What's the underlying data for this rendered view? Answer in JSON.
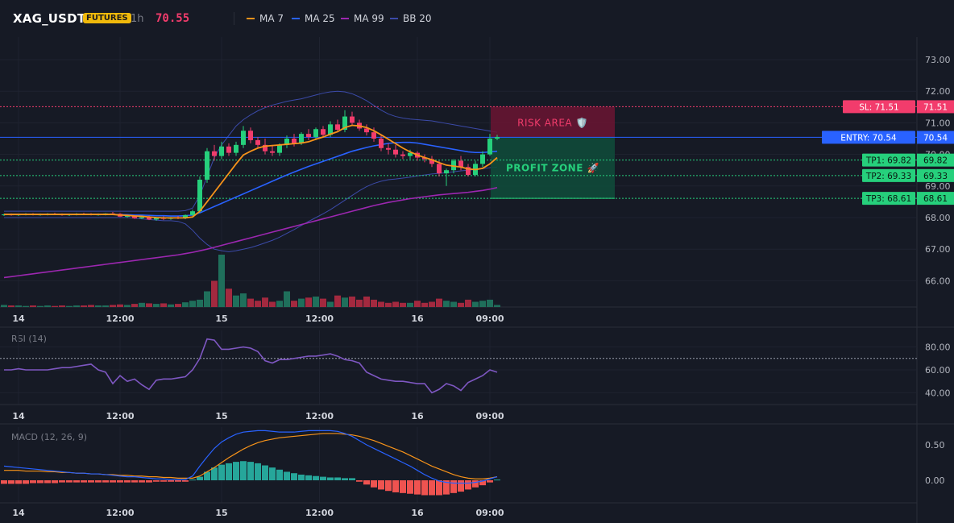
{
  "header": {
    "symbol": "XAG_USDT",
    "badge": "FUTURES",
    "timeframe": "1h",
    "price": "70.55"
  },
  "legend": [
    {
      "label": "MA 7",
      "color": "#f7931a"
    },
    {
      "label": "MA 25",
      "color": "#2962ff"
    },
    {
      "label": "MA 99",
      "color": "#9c27b0"
    },
    {
      "label": "BB 20",
      "color": "#3b4aa8"
    }
  ],
  "colors": {
    "up": "#26d07c",
    "down": "#f23c6c",
    "vol_up": "#1f6f5b",
    "vol_down": "#a3293f"
  },
  "chart_data": [
    {
      "type": "candlestick",
      "title": "XAG_USDT 1h",
      "x_ticks": [
        "14",
        "12:00",
        "15",
        "12:00",
        "16",
        "09:00"
      ],
      "y_ticks": [
        "73.00",
        "72.00",
        "71.00",
        "70.00",
        "69.00",
        "68.00",
        "67.00",
        "66.00"
      ],
      "ylim": [
        65.2,
        73.6
      ],
      "candles": [
        [
          68.08,
          68.12,
          68.05,
          68.1
        ],
        [
          68.1,
          68.13,
          68.06,
          68.08
        ],
        [
          68.08,
          68.12,
          68.05,
          68.1
        ],
        [
          68.1,
          68.14,
          68.07,
          68.11
        ],
        [
          68.11,
          68.14,
          68.07,
          68.09
        ],
        [
          68.09,
          68.13,
          68.06,
          68.1
        ],
        [
          68.1,
          68.14,
          68.07,
          68.12
        ],
        [
          68.12,
          68.15,
          68.08,
          68.1
        ],
        [
          68.1,
          68.13,
          68.06,
          68.08
        ],
        [
          68.08,
          68.12,
          68.05,
          68.1
        ],
        [
          68.1,
          68.14,
          68.07,
          68.12
        ],
        [
          68.12,
          68.15,
          68.08,
          68.11
        ],
        [
          68.11,
          68.14,
          68.07,
          68.09
        ],
        [
          68.09,
          68.13,
          68.06,
          68.1
        ],
        [
          68.1,
          68.14,
          68.07,
          68.13
        ],
        [
          68.13,
          68.18,
          68.1,
          68.12
        ],
        [
          68.12,
          68.14,
          68.02,
          68.03
        ],
        [
          68.03,
          68.08,
          67.99,
          68.05
        ],
        [
          68.05,
          68.08,
          67.96,
          67.98
        ],
        [
          67.98,
          68.05,
          67.95,
          68.02
        ],
        [
          68.02,
          68.06,
          67.92,
          67.94
        ],
        [
          67.94,
          68.02,
          67.9,
          67.99
        ],
        [
          67.99,
          68.04,
          67.92,
          67.96
        ],
        [
          67.96,
          68.02,
          67.93,
          68.0
        ],
        [
          68.0,
          68.05,
          67.95,
          67.98
        ],
        [
          67.98,
          68.1,
          67.95,
          68.08
        ],
        [
          68.08,
          68.25,
          68.05,
          68.2
        ],
        [
          68.2,
          69.3,
          68.15,
          69.2
        ],
        [
          69.2,
          70.2,
          69.1,
          70.1
        ],
        [
          70.1,
          70.3,
          69.8,
          69.95
        ],
        [
          69.95,
          70.4,
          69.85,
          70.25
        ],
        [
          70.25,
          70.35,
          69.95,
          70.05
        ],
        [
          70.05,
          70.4,
          69.95,
          70.3
        ],
        [
          70.3,
          70.9,
          70.2,
          70.75
        ],
        [
          70.75,
          70.85,
          70.35,
          70.45
        ],
        [
          70.45,
          70.55,
          70.2,
          70.3
        ],
        [
          70.3,
          70.5,
          70.0,
          70.1
        ],
        [
          70.1,
          70.3,
          69.95,
          70.05
        ],
        [
          70.05,
          70.35,
          69.95,
          70.3
        ],
        [
          70.3,
          70.6,
          70.2,
          70.5
        ],
        [
          70.5,
          70.65,
          70.25,
          70.35
        ],
        [
          70.35,
          70.7,
          70.3,
          70.65
        ],
        [
          70.65,
          70.8,
          70.45,
          70.55
        ],
        [
          70.55,
          70.85,
          70.45,
          70.8
        ],
        [
          70.8,
          70.9,
          70.55,
          70.62
        ],
        [
          70.62,
          71.05,
          70.55,
          70.95
        ],
        [
          70.95,
          71.1,
          70.7,
          70.78
        ],
        [
          70.78,
          71.4,
          70.7,
          71.2
        ],
        [
          71.2,
          71.35,
          70.9,
          71.0
        ],
        [
          71.0,
          71.1,
          70.75,
          70.82
        ],
        [
          70.82,
          70.95,
          70.6,
          70.7
        ],
        [
          70.7,
          70.85,
          70.4,
          70.5
        ],
        [
          70.5,
          70.6,
          70.1,
          70.2
        ],
        [
          70.2,
          70.35,
          70.0,
          70.15
        ],
        [
          70.15,
          70.3,
          69.9,
          70.0
        ],
        [
          70.0,
          70.1,
          69.85,
          69.95
        ],
        [
          69.95,
          70.15,
          69.85,
          70.05
        ],
        [
          70.05,
          70.1,
          69.8,
          69.9
        ],
        [
          69.9,
          70.0,
          69.75,
          69.85
        ],
        [
          69.85,
          69.95,
          69.6,
          69.7
        ],
        [
          69.7,
          69.8,
          69.3,
          69.4
        ],
        [
          69.4,
          69.55,
          69.0,
          69.5
        ],
        [
          69.5,
          69.85,
          69.4,
          69.8
        ],
        [
          69.8,
          69.95,
          69.5,
          69.6
        ],
        [
          69.6,
          69.7,
          69.3,
          69.35
        ],
        [
          69.35,
          69.8,
          69.3,
          69.7
        ],
        [
          69.7,
          70.1,
          69.6,
          70.0
        ],
        [
          70.0,
          70.65,
          69.95,
          70.5
        ],
        [
          70.5,
          70.62,
          70.45,
          70.55
        ]
      ],
      "ma7": [
        68.1,
        68.1,
        68.1,
        68.1,
        68.1,
        68.1,
        68.1,
        68.1,
        68.1,
        68.1,
        68.1,
        68.1,
        68.1,
        68.1,
        68.1,
        68.1,
        68.08,
        68.07,
        68.05,
        68.04,
        68.02,
        68.0,
        67.99,
        67.99,
        67.99,
        67.99,
        68.02,
        68.2,
        68.5,
        68.8,
        69.1,
        69.4,
        69.7,
        69.98,
        70.1,
        70.2,
        70.26,
        70.28,
        70.3,
        70.32,
        70.34,
        70.36,
        70.4,
        70.48,
        70.55,
        70.64,
        70.72,
        70.85,
        70.92,
        70.9,
        70.85,
        70.75,
        70.62,
        70.48,
        70.34,
        70.2,
        70.08,
        69.98,
        69.9,
        69.83,
        69.74,
        69.66,
        69.63,
        69.6,
        69.54,
        69.52,
        69.56,
        69.7,
        69.9
      ],
      "ma25": [
        68.1,
        68.1,
        68.1,
        68.1,
        68.1,
        68.1,
        68.1,
        68.1,
        68.1,
        68.1,
        68.1,
        68.1,
        68.1,
        68.1,
        68.1,
        68.1,
        68.09,
        68.09,
        68.08,
        68.08,
        68.07,
        68.06,
        68.06,
        68.05,
        68.05,
        68.06,
        68.08,
        68.15,
        68.25,
        68.35,
        68.45,
        68.55,
        68.65,
        68.75,
        68.85,
        68.95,
        69.05,
        69.15,
        69.25,
        69.35,
        69.44,
        69.53,
        69.62,
        69.7,
        69.78,
        69.86,
        69.94,
        70.02,
        70.1,
        70.16,
        70.22,
        70.27,
        70.31,
        70.35,
        70.37,
        70.38,
        70.38,
        70.36,
        70.32,
        70.28,
        70.24,
        70.2,
        70.16,
        70.12,
        70.08,
        70.06,
        70.06,
        70.08,
        70.1
      ],
      "ma99": [
        66.1,
        66.13,
        66.16,
        66.19,
        66.22,
        66.25,
        66.28,
        66.31,
        66.34,
        66.37,
        66.4,
        66.43,
        66.46,
        66.49,
        66.52,
        66.55,
        66.58,
        66.61,
        66.64,
        66.67,
        66.7,
        66.73,
        66.76,
        66.79,
        66.82,
        66.86,
        66.9,
        66.95,
        67.0,
        67.06,
        67.12,
        67.18,
        67.24,
        67.3,
        67.36,
        67.42,
        67.48,
        67.54,
        67.6,
        67.66,
        67.72,
        67.78,
        67.84,
        67.9,
        67.96,
        68.02,
        68.08,
        68.14,
        68.2,
        68.26,
        68.32,
        68.38,
        68.43,
        68.48,
        68.52,
        68.56,
        68.6,
        68.63,
        68.66,
        68.69,
        68.72,
        68.74,
        68.76,
        68.78,
        68.8,
        68.83,
        68.86,
        68.9,
        68.95
      ],
      "bb_upper": [
        68.2,
        68.2,
        68.2,
        68.2,
        68.2,
        68.2,
        68.2,
        68.2,
        68.2,
        68.2,
        68.2,
        68.2,
        68.2,
        68.2,
        68.2,
        68.2,
        68.2,
        68.2,
        68.2,
        68.2,
        68.2,
        68.2,
        68.2,
        68.2,
        68.2,
        68.22,
        68.3,
        68.7,
        69.3,
        69.9,
        70.3,
        70.6,
        70.9,
        71.1,
        71.25,
        71.38,
        71.48,
        71.56,
        71.62,
        71.68,
        71.72,
        71.76,
        71.82,
        71.88,
        71.94,
        71.98,
        72.0,
        71.98,
        71.92,
        71.82,
        71.7,
        71.55,
        71.4,
        71.28,
        71.2,
        71.15,
        71.12,
        71.1,
        71.08,
        71.06,
        71.02,
        70.98,
        70.94,
        70.9,
        70.86,
        70.82,
        70.78,
        70.74,
        70.7
      ],
      "bb_lower": [
        68.0,
        68.0,
        68.0,
        68.0,
        68.0,
        68.0,
        68.0,
        68.0,
        68.0,
        68.0,
        68.0,
        68.0,
        68.0,
        68.0,
        68.0,
        68.0,
        68.0,
        68.0,
        67.98,
        67.96,
        67.94,
        67.92,
        67.9,
        67.9,
        67.88,
        67.8,
        67.6,
        67.35,
        67.15,
        67.0,
        66.95,
        66.92,
        66.95,
        67.0,
        67.05,
        67.12,
        67.2,
        67.28,
        67.38,
        67.5,
        67.62,
        67.75,
        67.88,
        68.0,
        68.12,
        68.25,
        68.4,
        68.55,
        68.7,
        68.85,
        68.98,
        69.08,
        69.15,
        69.2,
        69.22,
        69.25,
        69.28,
        69.32,
        69.35,
        69.38,
        69.4,
        69.42,
        69.45,
        69.48,
        69.5,
        69.52,
        69.55,
        69.58,
        69.6
      ],
      "volume": [
        4,
        3,
        3,
        2,
        3,
        2,
        3,
        2,
        3,
        2,
        3,
        3,
        4,
        3,
        3,
        4,
        5,
        4,
        6,
        8,
        7,
        6,
        7,
        5,
        6,
        9,
        12,
        14,
        30,
        50,
        100,
        35,
        22,
        26,
        16,
        12,
        18,
        10,
        12,
        30,
        12,
        16,
        18,
        20,
        16,
        10,
        22,
        18,
        20,
        14,
        20,
        14,
        10,
        8,
        10,
        8,
        8,
        12,
        8,
        10,
        16,
        12,
        10,
        8,
        14,
        10,
        12,
        14,
        4
      ],
      "levels": {
        "sl": "SL: 71.51",
        "entry": "ENTRY: 70.54",
        "tp1": "TP1: 69.82",
        "tp2": "TP2: 69.33",
        "tp3": "TP3: 68.61"
      },
      "level_values": {
        "sl": "71.51",
        "entry": "70.54",
        "tp1": "69.82",
        "tp2": "69.33",
        "tp3": "68.61"
      },
      "level_numbers": {
        "sl": 71.51,
        "entry": 70.54,
        "tp1": 69.82,
        "tp2": 69.33,
        "tp3": 68.61
      },
      "zones": {
        "risk": "RISK AREA 🛡️",
        "profit": "PROFIT ZONE 🚀"
      },
      "grid": true
    },
    {
      "type": "line",
      "title": "RSI (14)",
      "y_ticks": [
        "80.00",
        "60.00",
        "40.00"
      ],
      "ylim": [
        25,
        93
      ],
      "levels": [
        70
      ],
      "values": [
        60,
        60,
        61,
        60,
        60,
        60,
        60,
        61,
        62,
        62,
        63,
        64,
        65,
        60,
        58,
        48,
        55,
        50,
        52,
        47,
        43,
        51,
        52,
        52,
        53,
        54,
        60,
        70,
        87,
        86,
        78,
        78,
        79,
        80,
        79,
        76,
        68,
        66,
        69,
        69,
        70,
        71,
        72,
        72,
        73,
        74,
        72,
        69,
        68,
        66,
        58,
        55,
        52,
        51,
        50,
        50,
        49,
        48,
        48,
        40,
        43,
        48,
        46,
        42,
        49,
        52,
        55,
        60,
        58
      ]
    },
    {
      "type": "bar",
      "title": "MACD (12, 26, 9)",
      "y_ticks": [
        "0.50",
        "0.00"
      ],
      "ylim": [
        -0.45,
        0.78
      ],
      "histogram": [
        -0.05,
        -0.05,
        -0.05,
        -0.05,
        -0.04,
        -0.04,
        -0.04,
        -0.04,
        -0.03,
        -0.03,
        -0.03,
        -0.03,
        -0.03,
        -0.03,
        -0.03,
        -0.03,
        -0.03,
        -0.03,
        -0.03,
        -0.03,
        -0.03,
        -0.02,
        -0.02,
        -0.02,
        -0.02,
        -0.02,
        0.01,
        0.05,
        0.12,
        0.18,
        0.22,
        0.24,
        0.26,
        0.27,
        0.26,
        0.24,
        0.21,
        0.18,
        0.15,
        0.12,
        0.1,
        0.08,
        0.07,
        0.06,
        0.05,
        0.04,
        0.04,
        0.03,
        0.03,
        -0.02,
        -0.06,
        -0.1,
        -0.13,
        -0.15,
        -0.17,
        -0.18,
        -0.19,
        -0.2,
        -0.21,
        -0.21,
        -0.21,
        -0.2,
        -0.18,
        -0.16,
        -0.13,
        -0.1,
        -0.07,
        -0.03,
        0.01
      ],
      "macd": [
        0.2,
        0.19,
        0.18,
        0.17,
        0.16,
        0.15,
        0.14,
        0.13,
        0.12,
        0.11,
        0.1,
        0.1,
        0.09,
        0.09,
        0.08,
        0.07,
        0.06,
        0.05,
        0.05,
        0.04,
        0.03,
        0.02,
        0.02,
        0.01,
        0.01,
        0.01,
        0.06,
        0.2,
        0.33,
        0.45,
        0.54,
        0.6,
        0.65,
        0.68,
        0.69,
        0.7,
        0.7,
        0.69,
        0.68,
        0.68,
        0.68,
        0.69,
        0.7,
        0.7,
        0.7,
        0.7,
        0.69,
        0.66,
        0.62,
        0.56,
        0.5,
        0.45,
        0.4,
        0.35,
        0.3,
        0.25,
        0.2,
        0.14,
        0.08,
        0.03,
        -0.01,
        -0.03,
        -0.04,
        -0.04,
        -0.04,
        -0.03,
        -0.01,
        0.02,
        0.05
      ],
      "signal": [
        0.14,
        0.14,
        0.14,
        0.13,
        0.13,
        0.13,
        0.12,
        0.12,
        0.11,
        0.11,
        0.1,
        0.1,
        0.09,
        0.09,
        0.08,
        0.08,
        0.07,
        0.07,
        0.06,
        0.06,
        0.05,
        0.05,
        0.04,
        0.04,
        0.03,
        0.03,
        0.03,
        0.06,
        0.12,
        0.18,
        0.25,
        0.32,
        0.38,
        0.44,
        0.49,
        0.53,
        0.56,
        0.58,
        0.6,
        0.61,
        0.62,
        0.63,
        0.64,
        0.65,
        0.66,
        0.66,
        0.66,
        0.65,
        0.64,
        0.62,
        0.59,
        0.56,
        0.52,
        0.48,
        0.44,
        0.4,
        0.35,
        0.3,
        0.25,
        0.2,
        0.16,
        0.12,
        0.08,
        0.05,
        0.03,
        0.02,
        0.02,
        0.03,
        0.05
      ]
    }
  ]
}
